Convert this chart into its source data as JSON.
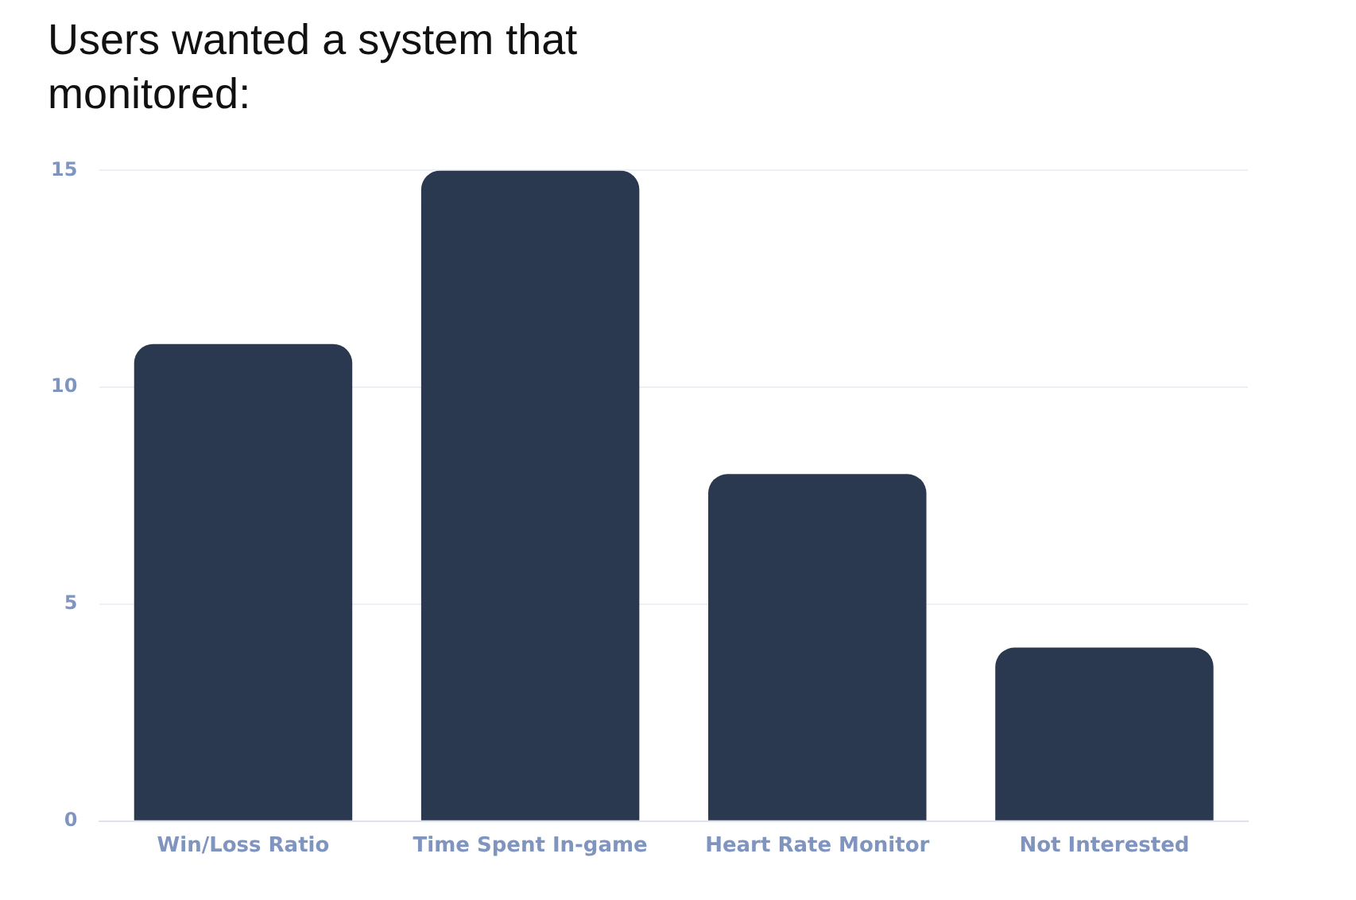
{
  "chart_data": {
    "type": "bar",
    "title": "Users wanted a system that monitored:",
    "categories": [
      "Win/Loss Ratio",
      "Time Spent In-game",
      "Heart Rate Monitor",
      "Not Interested"
    ],
    "values": [
      11,
      15,
      8,
      4
    ],
    "color": "#2b3950",
    "ylim": [
      0,
      15
    ],
    "yticks": [
      0,
      5,
      10,
      15
    ],
    "grid": "y"
  }
}
